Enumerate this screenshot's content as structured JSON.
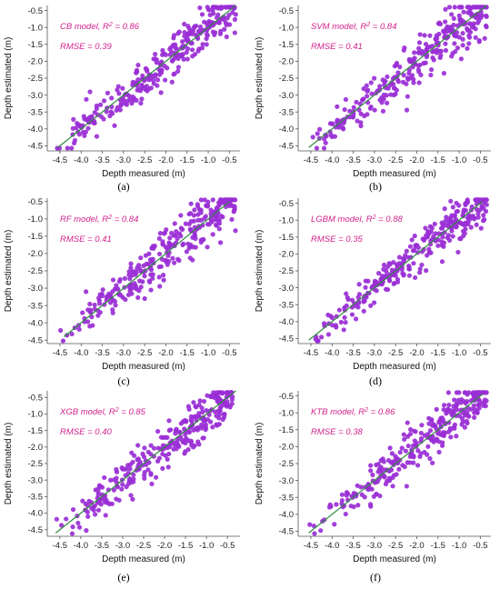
{
  "colors": {
    "points": "#9a2fd6",
    "fit_line": "#2e8b3e",
    "annotation": "#d3228c",
    "axis": "#555555"
  },
  "chart_data": [
    {
      "type": "scatter",
      "caption": "(a)",
      "model_label": "CB model, R",
      "r2_suffix": " = 0.86",
      "rmse_label": "RMSE = 0.39",
      "xlabel": "Depth measured (m)",
      "ylabel": "Depth estimated (m)",
      "xlim": [
        -4.8,
        -0.25
      ],
      "ylim": [
        -4.65,
        -0.35
      ],
      "xticks": [
        -4.5,
        -4.0,
        -3.5,
        -3.0,
        -2.5,
        -2.0,
        -1.5,
        -1.0,
        -0.5
      ],
      "xtick_labels": [
        "-4.5",
        "-4.0",
        "-3.5",
        "-3.0",
        "-2.5",
        "-2.0",
        "-1.5",
        "-1.0",
        "-0.5"
      ],
      "yticks": [
        -4.5,
        -4.0,
        -3.5,
        -3.0,
        -2.5,
        -2.0,
        -1.5,
        -1.0,
        -0.5
      ],
      "ytick_labels": [
        "-4.5",
        "-4.0",
        "-3.5",
        "-3.0",
        "-2.5",
        "-2.0",
        "-1.5",
        "-1.0",
        "-0.5"
      ],
      "fit_line": [
        [
          -4.55,
          -4.55
        ],
        [
          -0.35,
          -0.35
        ]
      ],
      "seed": 11,
      "scatter_sd": 0.36
    },
    {
      "type": "scatter",
      "caption": "(b)",
      "model_label": "SVM model, R",
      "r2_suffix": " = 0.84",
      "rmse_label": "RMSE = 0.41",
      "xlabel": "Depth measured (m)",
      "ylabel": "Depth estimated (m)",
      "xlim": [
        -4.8,
        -0.25
      ],
      "ylim": [
        -4.65,
        -0.35
      ],
      "xticks": [
        -4.5,
        -4.0,
        -3.5,
        -3.0,
        -2.5,
        -2.0,
        -1.5,
        -1.0,
        -0.5
      ],
      "xtick_labels": [
        "-4.5",
        "-4.0",
        "-3.5",
        "-3.0",
        "-2.5",
        "-2.0",
        "-1.5",
        "-1.0",
        "-0.5"
      ],
      "yticks": [
        -4.5,
        -4.0,
        -3.5,
        -3.0,
        -2.5,
        -2.0,
        -1.5,
        -1.0,
        -0.5
      ],
      "ytick_labels": [
        "-4.5",
        "-4.0",
        "-3.5",
        "-3.0",
        "-2.5",
        "-2.0",
        "-1.5",
        "-1.0",
        "-0.5"
      ],
      "fit_line": [
        [
          -4.55,
          -4.55
        ],
        [
          -0.35,
          -0.35
        ]
      ],
      "seed": 23,
      "scatter_sd": 0.38
    },
    {
      "type": "scatter",
      "caption": "(c)",
      "model_label": "RF model, R",
      "r2_suffix": " = 0.84",
      "rmse_label": "RMSE = 0.41",
      "xlabel": "Depth measured (m)",
      "ylabel": "Depth estimated (m)",
      "xlim": [
        -4.8,
        -0.25
      ],
      "ylim": [
        -4.6,
        -0.4
      ],
      "xticks": [
        -4.5,
        -4.0,
        -3.5,
        -3.0,
        -2.5,
        -2.0,
        -1.5,
        -1.0,
        -0.5
      ],
      "xtick_labels": [
        "-4.5",
        "-4.0",
        "-3.5",
        "-3.0",
        "-2.5",
        "-2.0",
        "-1.5",
        "-1.0",
        "-0.5"
      ],
      "yticks": [
        -4.5,
        -4.0,
        -3.5,
        -3.0,
        -2.5,
        -2.0,
        -1.5,
        -1.0,
        -0.5
      ],
      "ytick_labels": [
        "-4.5",
        "-4.0",
        "-3.5",
        "-3.0",
        "-2.5",
        "-2.0",
        "-1.5",
        "-1.0",
        "-0.5"
      ],
      "fit_line": [
        [
          -4.4,
          -4.4
        ],
        [
          -0.5,
          -0.5
        ]
      ],
      "seed": 37,
      "scatter_sd": 0.38
    },
    {
      "type": "scatter",
      "caption": "(d)",
      "model_label": "LGBM model, R",
      "r2_suffix": " = 0.88",
      "rmse_label": "RMSE = 0.35",
      "xlabel": "Depth measured (m)",
      "ylabel": "Depth estimated (m)",
      "xlim": [
        -4.8,
        -0.25
      ],
      "ylim": [
        -4.65,
        -0.35
      ],
      "xticks": [
        -4.5,
        -4.0,
        -3.5,
        -3.0,
        -2.5,
        -2.0,
        -1.5,
        -1.0,
        -0.5
      ],
      "xtick_labels": [
        "-4.5",
        "-4.0",
        "-3.5",
        "-3.0",
        "-2.5",
        "-2.0",
        "-1.5",
        "-1.0",
        "-0.5"
      ],
      "yticks": [
        -4.5,
        -4.0,
        -3.5,
        -3.0,
        -2.5,
        -2.0,
        -1.5,
        -1.0,
        -0.5
      ],
      "ytick_labels": [
        "-4.5",
        "-4.0",
        "-3.5",
        "-3.0",
        "-2.5",
        "-2.0",
        "-1.5",
        "-1.0",
        "-0.5"
      ],
      "fit_line": [
        [
          -4.55,
          -4.55
        ],
        [
          -0.45,
          -0.45
        ]
      ],
      "seed": 53,
      "scatter_sd": 0.32
    },
    {
      "type": "scatter",
      "caption": "(e)",
      "model_label": "XGB model, R",
      "r2_suffix": " = 0.85",
      "rmse_label": "RMSE = 0.40",
      "xlabel": "Depth measured (m)",
      "ylabel": "Depth estimated (m)",
      "xlim": [
        -4.8,
        -0.2
      ],
      "ylim": [
        -4.7,
        -0.3
      ],
      "xticks": [
        -4.5,
        -4.0,
        -3.5,
        -3.0,
        -2.5,
        -2.0,
        -1.5,
        -1.0,
        -0.5
      ],
      "xtick_labels": [
        "-4.5",
        "-4.0",
        "-3.5",
        "-3.0",
        "-2.5",
        "-2.0",
        "-1.5",
        "-1.0",
        "-0.5"
      ],
      "yticks": [
        -4.5,
        -4.0,
        -3.5,
        -3.0,
        -2.5,
        -2.0,
        -1.5,
        -1.0,
        -0.5
      ],
      "ytick_labels": [
        "-4.5",
        "-4.0",
        "-3.5",
        "-3.0",
        "-2.5",
        "-2.0",
        "-1.5",
        "-1.0",
        "-0.5"
      ],
      "fit_line": [
        [
          -4.6,
          -4.6
        ],
        [
          -0.3,
          -0.3
        ]
      ],
      "seed": 71,
      "scatter_sd": 0.37
    },
    {
      "type": "scatter",
      "caption": "(f)",
      "model_label": "KTB model, R",
      "r2_suffix": " = 0.86",
      "rmse_label": "RMSE = 0.38",
      "xlabel": "Depth measured (m)",
      "ylabel": "Depth estimated (m)",
      "xlim": [
        -4.8,
        -0.25
      ],
      "ylim": [
        -4.65,
        -0.35
      ],
      "xticks": [
        -4.5,
        -4.0,
        -3.5,
        -3.0,
        -2.5,
        -2.0,
        -1.5,
        -1.0,
        -0.5
      ],
      "xtick_labels": [
        "-4.5",
        "-4.0",
        "-3.5",
        "-3.0",
        "-2.5",
        "-2.0",
        "-1.5",
        "-1.0",
        "-0.5"
      ],
      "yticks": [
        -4.5,
        -4.0,
        -3.5,
        -3.0,
        -2.5,
        -2.0,
        -1.5,
        -1.0,
        -0.5
      ],
      "ytick_labels": [
        "-4.5",
        "-4.0",
        "-3.5",
        "-3.0",
        "-2.5",
        "-2.0",
        "-1.5",
        "-1.0",
        "-0.5"
      ],
      "fit_line": [
        [
          -4.55,
          -4.55
        ],
        [
          -0.45,
          -0.45
        ]
      ],
      "seed": 89,
      "scatter_sd": 0.35
    }
  ]
}
